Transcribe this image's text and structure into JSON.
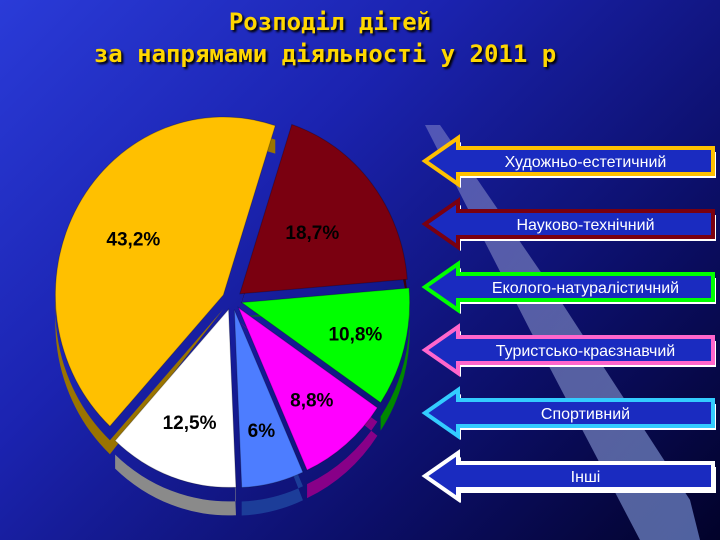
{
  "title": {
    "line1": "Розподіл дітей",
    "line2": "за напрямами діяльності у 2011 р"
  },
  "colors": {
    "accent": "#ffd700",
    "slices": [
      "#ffc000",
      "#7a0010",
      "#00ff00",
      "#ff00ff",
      "#4d7dff",
      "#ffffff"
    ],
    "sides": [
      "#9a7400",
      "#3d0008",
      "#008800",
      "#880088",
      "#1c3d99",
      "#8a8a8a"
    ],
    "legend_borders": [
      "#ffc000",
      "#7a0010",
      "#00ff00",
      "#ff66cc",
      "#33ccff",
      "#ffffff"
    ]
  },
  "chart_data": {
    "type": "pie",
    "categories": [
      "Художньо-естетичний",
      "Науково-технічний",
      "Еколого-натуралістичний",
      "Туристсько-краєзнавчий",
      "Спортивний",
      "Інші"
    ],
    "values": [
      43.2,
      18.7,
      10.8,
      8.8,
      6,
      12.5
    ],
    "value_labels": [
      "43,2%",
      "18,7%",
      "10,8%",
      "8,8%",
      "6%",
      "12,5%"
    ],
    "title": "Розподіл дітей за напрямами діяльності у 2011 р",
    "legend_placement": "right"
  }
}
